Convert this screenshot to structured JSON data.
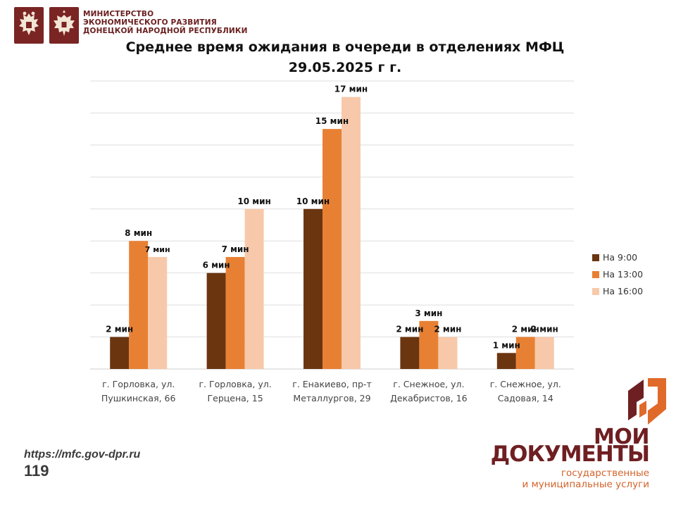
{
  "header": {
    "ministry_lines": [
      "МИНИСТЕРСТВО",
      "ЭКОНОМИЧЕСКОГО РАЗВИТИЯ",
      "ДОНЕЦКОЙ НАРОДНОЙ РЕСПУБЛИКИ"
    ],
    "emblems": [
      "russia-coat-of-arms-icon",
      "dpr-coat-of-arms-icon"
    ]
  },
  "footer": {
    "url": "https://mfc.gov-dpr.ru",
    "hotline": "119"
  },
  "brand": {
    "line1": "МОИ",
    "line2": "ДОКУМЕНТЫ",
    "sub1": "государственные",
    "sub2": "и муниципальные услуги",
    "colors": {
      "dark": "#6e1f22",
      "orange": "#d2632a"
    }
  },
  "chart_data": {
    "type": "bar",
    "title": "Среднее время ожидания в очереди в отделениях МФЦ",
    "subtitle": "29.05.2025 г г.",
    "categories": [
      [
        "г. Горловка, ул.",
        "Пушкинская, 66"
      ],
      [
        "г. Горловка, ул.",
        "Герцена, 15"
      ],
      [
        "г. Енакиево, пр-т",
        "Металлургов, 29"
      ],
      [
        "г. Снежное, ул.",
        "Декабристов, 16"
      ],
      [
        "г. Снежное, ул.",
        "Садовая, 14"
      ]
    ],
    "series": [
      {
        "name": "На 9:00",
        "color": "#6b3510",
        "values": [
          2,
          6,
          10,
          2,
          1
        ],
        "labels": [
          "2 мин",
          "6 мин",
          "10 мин",
          "2 мин",
          "1 мин"
        ]
      },
      {
        "name": "На 13:00",
        "color": "#e88033",
        "values": [
          8,
          7,
          15,
          3,
          2
        ],
        "labels": [
          "8 мин",
          "7 мин",
          "15 мин",
          "3 мин",
          "2 мин"
        ]
      },
      {
        "name": "На 16:00",
        "color": "#f7c9aa",
        "values": [
          7,
          10,
          17,
          2,
          2
        ],
        "labels": [
          "7 мин",
          "10 мин",
          "17 мин",
          "2 мин",
          "2 мин"
        ]
      }
    ],
    "ylim": [
      0,
      18
    ],
    "grid": true,
    "y_ticks_visible": false,
    "legend_position": "right"
  }
}
